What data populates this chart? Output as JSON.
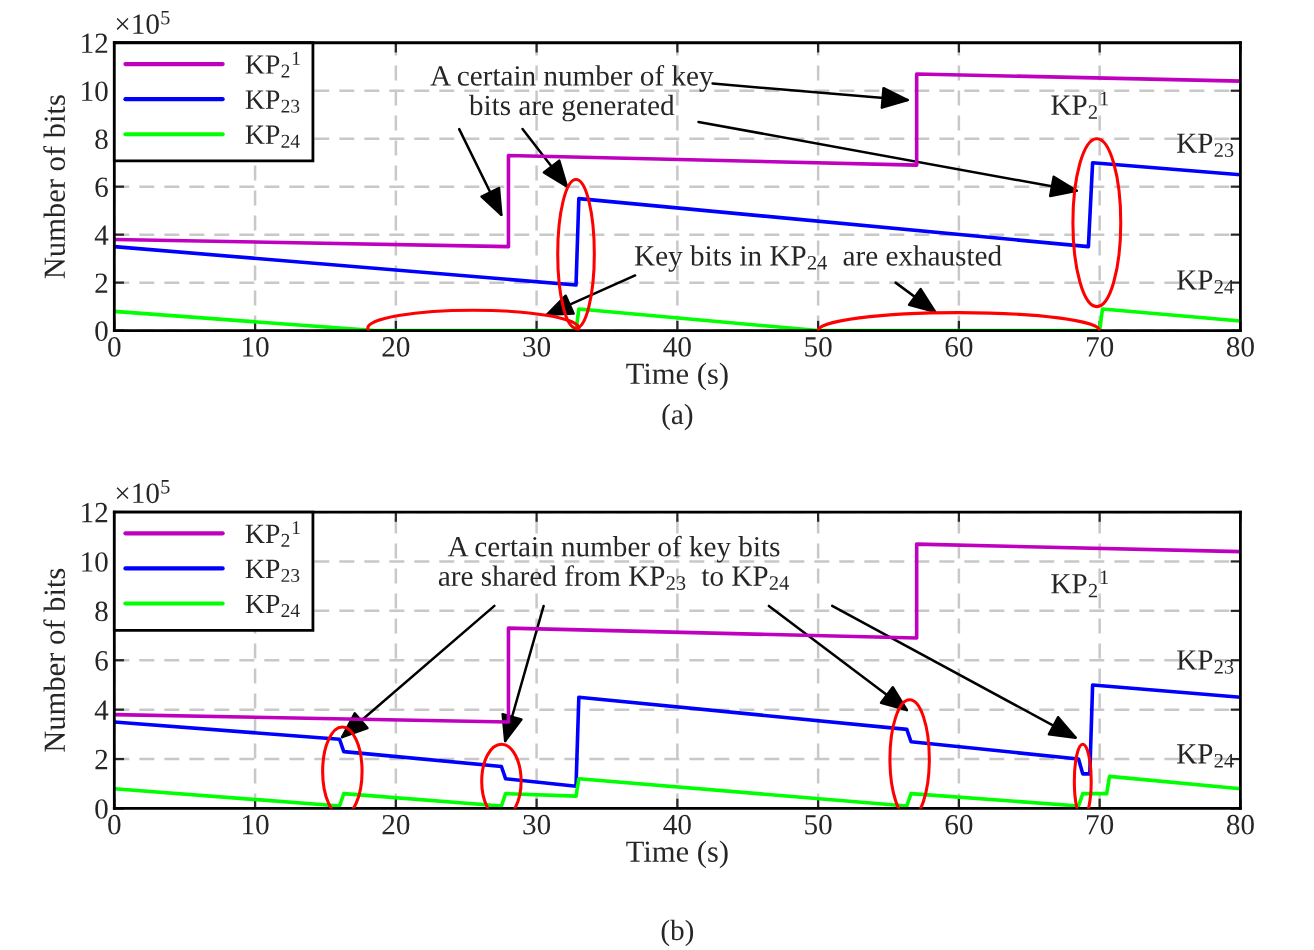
{
  "chart_data": [
    {
      "type": "line",
      "xlabel": "Time (s)",
      "ylabel": "Number of bits",
      "xlim": [
        0,
        80
      ],
      "ylim": [
        0,
        12
      ],
      "xticks": [
        0,
        10,
        20,
        30,
        40,
        50,
        60,
        70,
        80
      ],
      "yticks": [
        0,
        2,
        4,
        6,
        8,
        10,
        12
      ],
      "grid": true,
      "legend": "top left",
      "line_style": "solid",
      "marker": "none",
      "series": [
        {
          "name": "KP$_{2}$$^{1}$",
          "color": "#bf00bf",
          "x": [
            0,
            28,
            28,
            57,
            57,
            80
          ],
          "values": [
            3.8,
            3.5,
            7.3,
            6.9,
            10.7,
            10.4
          ]
        },
        {
          "name": "KP$_{23}$",
          "color": "#0000ff",
          "x": [
            0,
            32.8,
            33,
            69.2,
            69.5,
            80
          ],
          "values": [
            3.5,
            1.9,
            5.5,
            3.5,
            7.0,
            6.5
          ]
        },
        {
          "name": "KP$_{24}$",
          "color": "#00ff00",
          "x": [
            0,
            18.5,
            32.8,
            33,
            50,
            70,
            70.2,
            80
          ],
          "values": [
            0.8,
            0,
            0,
            0.9,
            0,
            0,
            0.9,
            0.4
          ]
        }
      ],
      "annotations": [
        "×10$^{5}$",
        "(a)",
        {
          "text": "A certain number of key\nbits are generated",
          "x": 27.6,
          "y": 4.7
        },
        "Key bits in KP$_{24}$  are exhausted",
        "KP$_{2}$$^{1}$",
        "KP$_{23}$",
        "KP$_{24}$"
      ]
    },
    {
      "type": "line",
      "xlabel": "Time (s)",
      "ylabel": "Number of bits",
      "xlim": [
        0,
        80
      ],
      "ylim": [
        0,
        12
      ],
      "xticks": [
        0,
        10,
        20,
        30,
        40,
        50,
        60,
        70,
        80
      ],
      "yticks": [
        0,
        2,
        4,
        6,
        8,
        10,
        12
      ],
      "grid": true,
      "legend": "top left",
      "line_style": "solid",
      "marker": "none",
      "series": [
        {
          "name": "KP$_{2}$$^{1}$",
          "color": "#bf00bf",
          "x": [
            0,
            28,
            28,
            57,
            57,
            80
          ],
          "values": [
            3.8,
            3.5,
            7.3,
            6.9,
            10.7,
            10.4
          ]
        },
        {
          "name": "KP$_{23}$",
          "color": "#0000ff",
          "x": [
            0,
            16,
            16.3,
            27.5,
            27.8,
            32.8,
            33,
            56.3,
            56.6,
            68.5,
            68.8,
            69.3,
            69.5,
            80
          ],
          "values": [
            3.5,
            2.8,
            2.3,
            1.7,
            1.2,
            0.9,
            4.5,
            3.2,
            2.7,
            2.0,
            1.4,
            1.4,
            5.0,
            4.5
          ]
        },
        {
          "name": "KP$_{24}$",
          "color": "#00ff00",
          "x": [
            0,
            16,
            16.3,
            27.5,
            27.8,
            32.8,
            33,
            56.3,
            56.6,
            68.5,
            68.8,
            70.5,
            70.7,
            80
          ],
          "values": [
            0.8,
            0.1,
            0.6,
            0.1,
            0.6,
            0.5,
            1.2,
            0.1,
            0.6,
            0.1,
            0.6,
            0.6,
            1.3,
            0.8
          ]
        }
      ],
      "annotations": [
        "×10$^{5}$",
        "(b)",
        {
          "text": "A certain number of key bits\nare shared from KP$_{23}$  to KP$_{24}$",
          "x": 16,
          "y": 2.8
        },
        "KP$_{2}$$^{1}$",
        "KP$_{23}$",
        "KP$_{24}$"
      ]
    }
  ]
}
